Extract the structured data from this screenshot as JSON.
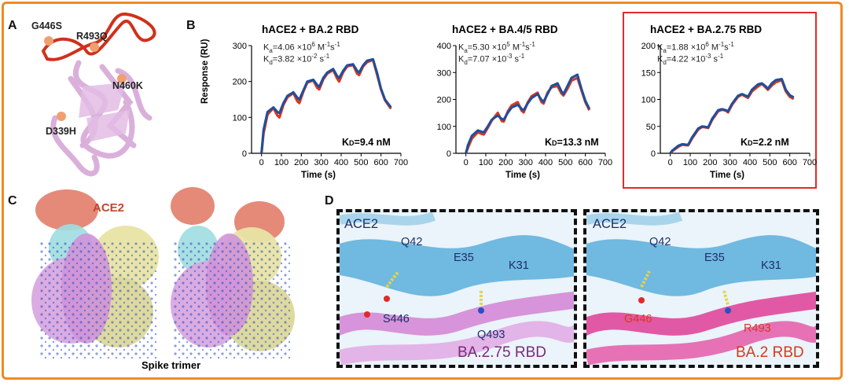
{
  "panels": {
    "a": "A",
    "b": "B",
    "c": "C",
    "d": "D"
  },
  "panel_a": {
    "mutations": [
      "G446S",
      "R493Q",
      "N460K",
      "D339H"
    ]
  },
  "panel_b": {
    "y_axis_label": "Response (RU)",
    "charts": [
      {
        "title": "hACE2 + BA.2 RBD",
        "ka_value": "4.06 ×10",
        "ka_exp": "6",
        "ka_unit": " M",
        "ka_unit_exp": "-1",
        "ka_s": "s",
        "ka_s_exp": "-1",
        "kd_value": "3.82 ×10",
        "kd_exp": "-2",
        "kd_unit": " s",
        "kd_unit_exp": "-1",
        "KD": "K",
        "KD_sub": "D",
        "KD_text": "=9.4 nM",
        "highlighted": false
      },
      {
        "title": "hACE2 + BA.4/5 RBD",
        "ka_value": "5.30 ×10",
        "ka_exp": "5",
        "ka_unit": " M",
        "ka_unit_exp": "-1",
        "ka_s": "s",
        "ka_s_exp": "-1",
        "kd_value": "7.07 ×10",
        "kd_exp": "-3",
        "kd_unit": " s",
        "kd_unit_exp": "-1",
        "KD": "K",
        "KD_sub": "D",
        "KD_text": "=13.3 nM",
        "highlighted": false
      },
      {
        "title": "hACE2 + BA.2.75 RBD",
        "ka_value": "1.88 ×10",
        "ka_exp": "6",
        "ka_unit": " M",
        "ka_unit_exp": "-1",
        "ka_s": "s",
        "ka_s_exp": "-1",
        "kd_value": "4.22 ×10",
        "kd_exp": "-3",
        "kd_unit": " s",
        "kd_unit_exp": "-1",
        "KD": "K",
        "KD_sub": "D",
        "KD_text": "=2.2 nM",
        "highlighted": true
      }
    ]
  },
  "panel_c": {
    "ace2_label": "ACE2",
    "trimer_label": "Spike trimer"
  },
  "panel_d": {
    "insets": [
      {
        "ace2": "ACE2",
        "q42": "Q42",
        "e35": "E35",
        "k31": "K31",
        "res1": "S446",
        "res2": "Q493",
        "rbd": "BA.2.75 RBD"
      },
      {
        "ace2": "ACE2",
        "q42": "Q42",
        "e35": "E35",
        "k31": "K31",
        "res1": "G446",
        "res2": "R493",
        "rbd": "BA.2 RBD"
      }
    ]
  },
  "colors": {
    "frame": "#f08a24",
    "highlight": "#e02b2b",
    "fit_line": "#1f4e9c",
    "data_line": "#d9381e",
    "ace2_surface": "#e58a78",
    "rbd_ba275": "#d58ad6",
    "rbd_ba2": "#e0489a",
    "ace2_helix": "#5aaedb"
  },
  "chart_data": [
    {
      "type": "line",
      "title": "hACE2 + BA.2 RBD",
      "xlabel": "Time (s)",
      "ylabel": "Response (RU)",
      "xlim": [
        -50,
        700
      ],
      "ylim": [
        0,
        300
      ],
      "xticks": [
        0,
        100,
        200,
        300,
        400,
        500,
        600,
        700
      ],
      "yticks": [
        0,
        100,
        200,
        300
      ],
      "series": [
        {
          "name": "fit",
          "x": [
            0,
            10,
            30,
            60,
            80,
            90,
            110,
            130,
            160,
            180,
            190,
            210,
            230,
            260,
            280,
            290,
            310,
            330,
            360,
            380,
            390,
            410,
            430,
            460,
            480,
            490,
            510,
            530,
            560,
            580,
            600,
            620,
            650
          ],
          "y": [
            0,
            65,
            115,
            128,
            115,
            112,
            140,
            160,
            170,
            155,
            150,
            175,
            200,
            205,
            190,
            185,
            210,
            225,
            235,
            215,
            210,
            230,
            245,
            248,
            230,
            225,
            245,
            258,
            262,
            225,
            180,
            150,
            128
          ]
        },
        {
          "name": "data",
          "x": [
            0,
            10,
            30,
            60,
            80,
            90,
            110,
            130,
            160,
            180,
            190,
            210,
            230,
            260,
            280,
            290,
            310,
            330,
            360,
            380,
            390,
            410,
            430,
            460,
            480,
            490,
            510,
            530,
            560,
            580,
            600,
            620,
            650
          ],
          "y": [
            0,
            55,
            108,
            126,
            105,
            100,
            135,
            156,
            168,
            145,
            140,
            172,
            197,
            203,
            182,
            178,
            206,
            222,
            232,
            208,
            200,
            226,
            242,
            246,
            222,
            218,
            242,
            254,
            260,
            220,
            178,
            148,
            124
          ]
        }
      ]
    },
    {
      "type": "line",
      "title": "hACE2 + BA.4/5 RBD",
      "xlabel": "Time (s)",
      "ylabel": "",
      "xlim": [
        -50,
        700
      ],
      "ylim": [
        0,
        400
      ],
      "xticks": [
        0,
        100,
        200,
        300,
        400,
        500,
        600,
        700
      ],
      "yticks": [
        0,
        100,
        200,
        300,
        400
      ],
      "series": [
        {
          "name": "fit",
          "x": [
            0,
            10,
            30,
            60,
            80,
            90,
            110,
            130,
            160,
            180,
            190,
            210,
            230,
            260,
            280,
            290,
            310,
            330,
            360,
            380,
            390,
            410,
            430,
            460,
            480,
            490,
            510,
            530,
            560,
            580,
            600,
            620
          ],
          "y": [
            0,
            30,
            65,
            85,
            80,
            78,
            100,
            125,
            140,
            128,
            125,
            150,
            170,
            180,
            165,
            160,
            185,
            205,
            220,
            198,
            192,
            220,
            250,
            260,
            230,
            220,
            250,
            280,
            292,
            240,
            195,
            165
          ]
        },
        {
          "name": "data",
          "x": [
            0,
            10,
            30,
            60,
            80,
            90,
            110,
            130,
            160,
            180,
            190,
            210,
            230,
            260,
            280,
            290,
            310,
            330,
            360,
            380,
            390,
            410,
            430,
            460,
            480,
            490,
            510,
            530,
            560,
            580,
            600,
            620
          ],
          "y": [
            0,
            20,
            55,
            78,
            72,
            70,
            95,
            122,
            150,
            120,
            118,
            155,
            178,
            190,
            158,
            152,
            188,
            212,
            225,
            190,
            185,
            225,
            245,
            250,
            222,
            215,
            240,
            270,
            280,
            235,
            190,
            160
          ]
        }
      ]
    },
    {
      "type": "line",
      "title": "hACE2 + BA.2.75 RBD",
      "xlabel": "Time (s)",
      "ylabel": "",
      "xlim": [
        -50,
        700
      ],
      "ylim": [
        0,
        200
      ],
      "xticks": [
        0,
        100,
        200,
        300,
        400,
        500,
        600,
        700
      ],
      "yticks": [
        0,
        50,
        100,
        150,
        200
      ],
      "series": [
        {
          "name": "fit",
          "x": [
            0,
            10,
            40,
            60,
            80,
            90,
            110,
            140,
            160,
            180,
            190,
            210,
            240,
            260,
            280,
            290,
            310,
            340,
            360,
            380,
            390,
            410,
            440,
            460,
            480,
            490,
            510,
            530,
            560,
            580,
            600,
            620
          ],
          "y": [
            0,
            5,
            14,
            17,
            16,
            16,
            30,
            46,
            50,
            49,
            48,
            64,
            80,
            82,
            80,
            78,
            92,
            107,
            110,
            107,
            105,
            118,
            128,
            130,
            124,
            120,
            130,
            136,
            138,
            118,
            108,
            104
          ]
        },
        {
          "name": "data",
          "x": [
            0,
            10,
            40,
            60,
            80,
            90,
            110,
            140,
            160,
            180,
            190,
            210,
            240,
            260,
            280,
            290,
            310,
            340,
            360,
            380,
            390,
            410,
            440,
            460,
            480,
            490,
            510,
            530,
            560,
            580,
            600,
            620
          ],
          "y": [
            0,
            4,
            12,
            16,
            15,
            15,
            28,
            44,
            49,
            48,
            47,
            62,
            78,
            81,
            79,
            76,
            90,
            105,
            109,
            105,
            103,
            115,
            124,
            129,
            122,
            118,
            126,
            132,
            136,
            115,
            105,
            101
          ]
        }
      ]
    }
  ]
}
